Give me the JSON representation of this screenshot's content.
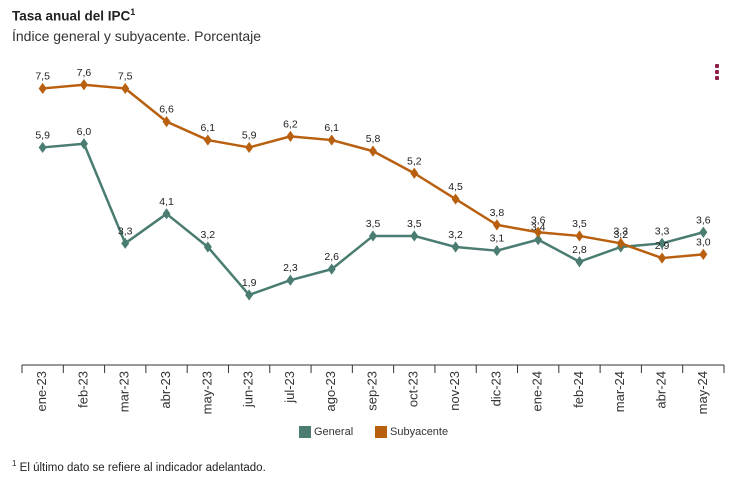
{
  "header": {
    "title": "Tasa anual del IPC",
    "title_sup": "1",
    "subtitle": "Índice general y subyacente. Porcentaje"
  },
  "menu": {
    "icon": "more-vertical-icon",
    "color": "#8e1f4a"
  },
  "footnote": {
    "sup": "1",
    "text": "El último dato se refiere al indicador adelantado."
  },
  "chart_data": {
    "type": "line",
    "categories": [
      "ene-23",
      "feb-23",
      "mar-23",
      "abr-23",
      "may-23",
      "jun-23",
      "jul-23",
      "ago-23",
      "sep-23",
      "oct-23",
      "nov-23",
      "dic-23",
      "ene-24",
      "feb-24",
      "mar-24",
      "abr-24",
      "may-24"
    ],
    "series": [
      {
        "name": "General",
        "color": "#4a7c72",
        "values": [
          5.9,
          6.0,
          3.3,
          4.1,
          3.2,
          1.9,
          2.3,
          2.6,
          3.5,
          3.5,
          3.2,
          3.1,
          3.4,
          2.8,
          3.2,
          3.3,
          3.6
        ]
      },
      {
        "name": "Subyacente",
        "color": "#b8600f",
        "values": [
          7.5,
          7.6,
          7.5,
          6.6,
          6.1,
          5.9,
          6.2,
          6.1,
          5.8,
          5.2,
          4.5,
          3.8,
          3.6,
          3.5,
          3.3,
          2.9,
          3.0
        ]
      }
    ],
    "ylim": [
      0,
      8
    ],
    "grid": false,
    "legend": "bottom-center"
  }
}
